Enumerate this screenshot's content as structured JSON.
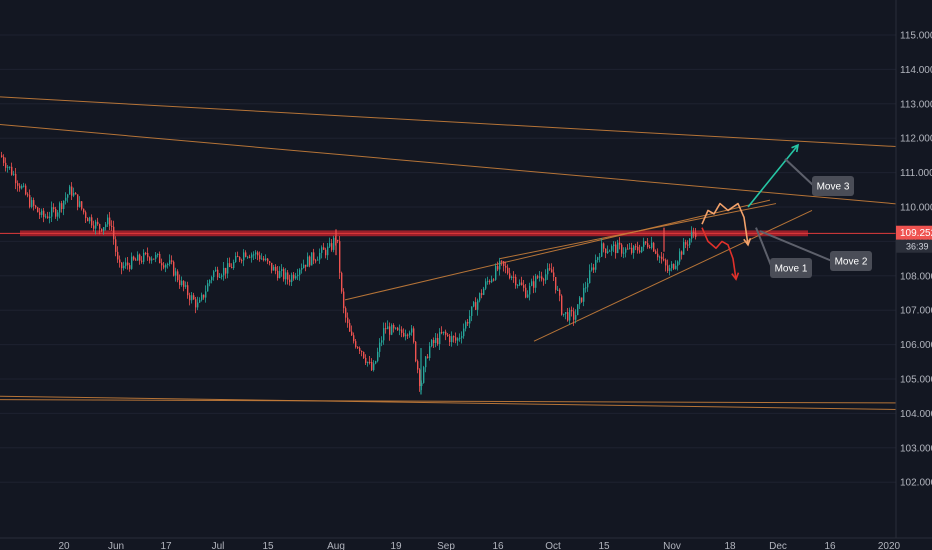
{
  "chart_data": {
    "type": "candlestick",
    "symbol_style": "dark",
    "ylim": [
      101.0,
      116.0
    ],
    "y_ticks": [
      "115.000",
      "114.000",
      "113.000",
      "112.000",
      "111.000",
      "110.000",
      "109.000",
      "108.000",
      "107.000",
      "106.000",
      "105.000",
      "104.000",
      "103.000",
      "102.000"
    ],
    "x_ticks": [
      "20",
      "Jun",
      "17",
      "Jul",
      "15",
      "Aug",
      "19",
      "Sep",
      "16",
      "Oct",
      "15",
      "Nov",
      "18",
      "Dec",
      "16",
      "2020"
    ],
    "current_price": "109.252",
    "countdown": "36:39",
    "price_series": [
      [
        0,
        111.5
      ],
      [
        14,
        110.9
      ],
      [
        30,
        110.1
      ],
      [
        42,
        109.7
      ],
      [
        56,
        109.9
      ],
      [
        70,
        110.5
      ],
      [
        84,
        109.8
      ],
      [
        98,
        109.4
      ],
      [
        110,
        109.6
      ],
      [
        118,
        108.2
      ],
      [
        132,
        108.4
      ],
      [
        150,
        108.6
      ],
      [
        170,
        108.3
      ],
      [
        184,
        107.6
      ],
      [
        198,
        107.1
      ],
      [
        212,
        108.1
      ],
      [
        228,
        108.2
      ],
      [
        244,
        108.7
      ],
      [
        258,
        108.6
      ],
      [
        272,
        108.2
      ],
      [
        288,
        107.9
      ],
      [
        300,
        108.3
      ],
      [
        316,
        108.6
      ],
      [
        330,
        108.8
      ],
      [
        336,
        109.2
      ],
      [
        342,
        107.1
      ],
      [
        350,
        106.2
      ],
      [
        360,
        105.9
      ],
      [
        372,
        105.2
      ],
      [
        384,
        106.5
      ],
      [
        398,
        106.3
      ],
      [
        410,
        106.5
      ],
      [
        420,
        104.8
      ],
      [
        428,
        105.9
      ],
      [
        442,
        106.3
      ],
      [
        456,
        106.1
      ],
      [
        470,
        106.9
      ],
      [
        486,
        107.8
      ],
      [
        500,
        108.3
      ],
      [
        512,
        108.0
      ],
      [
        526,
        107.5
      ],
      [
        538,
        108.0
      ],
      [
        552,
        108.1
      ],
      [
        562,
        106.9
      ],
      [
        574,
        106.8
      ],
      [
        586,
        107.8
      ],
      [
        600,
        108.8
      ],
      [
        616,
        108.8
      ],
      [
        632,
        108.7
      ],
      [
        650,
        109.0
      ],
      [
        668,
        108.1
      ],
      [
        680,
        108.7
      ],
      [
        694,
        109.3
      ]
    ],
    "support_resistance_zone": [
      109.15,
      109.32
    ],
    "projections": {
      "move_1": {
        "label": "Move 1",
        "color": "#e0312b",
        "points": [
          [
            702,
            109.4
          ],
          [
            708,
            109.0
          ],
          [
            716,
            108.8
          ],
          [
            722,
            109.0
          ],
          [
            728,
            108.9
          ],
          [
            733,
            108.5
          ],
          [
            736,
            107.9
          ]
        ]
      },
      "move_2": {
        "label": "Move 2",
        "color": "#f3a26b",
        "points": [
          [
            702,
            109.5
          ],
          [
            708,
            109.9
          ],
          [
            714,
            109.8
          ],
          [
            720,
            110.1
          ],
          [
            728,
            109.9
          ],
          [
            738,
            110.1
          ],
          [
            744,
            109.7
          ],
          [
            748,
            108.9
          ]
        ]
      },
      "move_3": {
        "label": "Move 3",
        "color": "#26c6a5",
        "points": [
          [
            748,
            110.0
          ],
          [
            798,
            111.8
          ]
        ]
      }
    },
    "trendlines": [
      {
        "color": "#c77e3a",
        "points": [
          [
            0,
            113.2
          ],
          [
            932,
            111.7
          ]
        ]
      },
      {
        "color": "#c77e3a",
        "points": [
          [
            0,
            112.4
          ],
          [
            932,
            110.0
          ]
        ]
      },
      {
        "color": "#c77e3a",
        "points": [
          [
            0,
            104.4
          ],
          [
            932,
            104.3
          ]
        ]
      },
      {
        "color": "#c77e3a",
        "points": [
          [
            0,
            104.5
          ],
          [
            932,
            104.1
          ]
        ]
      },
      {
        "color": "#c77e3a",
        "points": [
          [
            345,
            107.3
          ],
          [
            770,
            110.2
          ]
        ]
      },
      {
        "color": "#c77e3a",
        "points": [
          [
            500,
            108.5
          ],
          [
            776,
            110.1
          ]
        ]
      },
      {
        "color": "#c77e3a",
        "points": [
          [
            534,
            106.1
          ],
          [
            812,
            109.9
          ]
        ]
      }
    ],
    "callouts": [
      {
        "label": "Move 1",
        "target": [
          756,
          109.4
        ]
      },
      {
        "label": "Move 2",
        "target": [
          760,
          109.3
        ]
      },
      {
        "label": "Move 3",
        "target": [
          785,
          111.4
        ]
      }
    ]
  }
}
